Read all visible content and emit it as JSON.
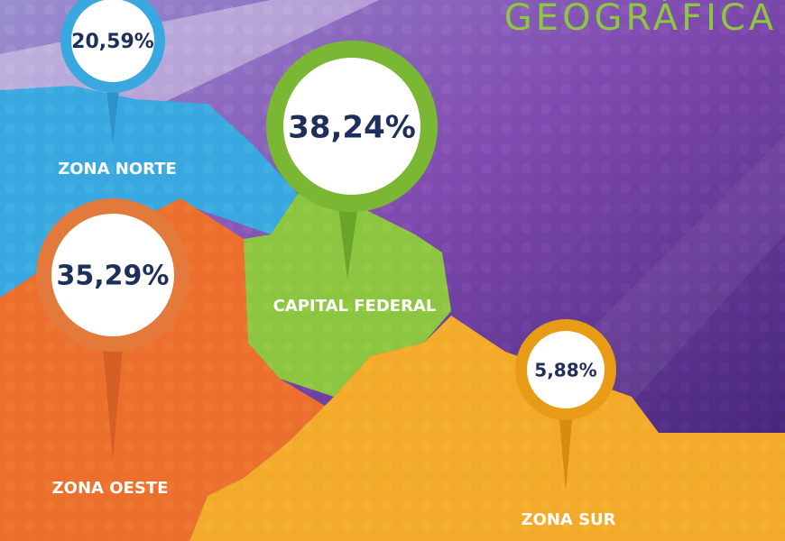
{
  "title": "GEOGRÁFICA",
  "regions": [
    {
      "name": "ZONA NORTE",
      "percent": "20,59%"
    },
    {
      "name": "CAPITAL FEDERAL",
      "percent": "38,24%"
    },
    {
      "name": "ZONA OESTE",
      "percent": "35,29%"
    },
    {
      "name": "ZONA SUR",
      "percent": "5,88%"
    }
  ]
}
